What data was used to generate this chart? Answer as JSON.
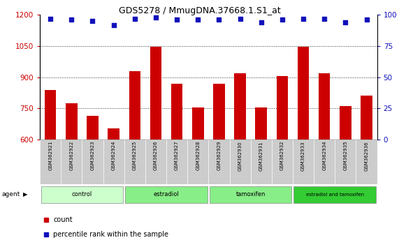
{
  "title": "GDS5278 / MmugDNA.37668.1.S1_at",
  "categories": [
    "GSM362921",
    "GSM362922",
    "GSM362923",
    "GSM362924",
    "GSM362925",
    "GSM362926",
    "GSM362927",
    "GSM362928",
    "GSM362929",
    "GSM362930",
    "GSM362931",
    "GSM362932",
    "GSM362933",
    "GSM362934",
    "GSM362935",
    "GSM362936"
  ],
  "bar_values": [
    840,
    775,
    715,
    655,
    930,
    1045,
    870,
    755,
    870,
    920,
    755,
    905,
    1045,
    920,
    760,
    810
  ],
  "percentile_values": [
    97,
    96,
    95,
    92,
    97,
    98,
    96,
    96,
    96,
    97,
    94,
    96,
    97,
    97,
    94,
    96
  ],
  "ylim_left": [
    600,
    1200
  ],
  "ylim_right": [
    0,
    100
  ],
  "yticks_left": [
    600,
    750,
    900,
    1050,
    1200
  ],
  "yticks_right": [
    0,
    25,
    50,
    75,
    100
  ],
  "bar_color": "#cc0000",
  "dot_color": "#1111bb",
  "background_color": "#ffffff",
  "grid_color": "#333333",
  "groups": [
    {
      "label": "control",
      "start": 0,
      "end": 3,
      "color": "#ccffcc"
    },
    {
      "label": "estradiol",
      "start": 4,
      "end": 7,
      "color": "#88ee88"
    },
    {
      "label": "tamoxifen",
      "start": 8,
      "end": 11,
      "color": "#88ee88"
    },
    {
      "label": "estradiol and tamoxifen",
      "start": 12,
      "end": 15,
      "color": "#33cc33"
    }
  ],
  "tick_label_color_left": "#cc0000",
  "tick_label_color_right": "#1111bb",
  "bar_bottom": 600,
  "sample_box_color": "#cccccc",
  "sample_box_edge": "#888888"
}
